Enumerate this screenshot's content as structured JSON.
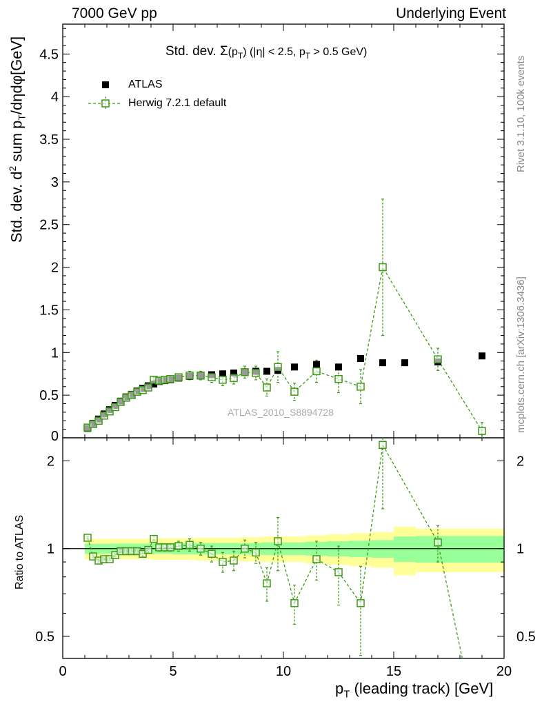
{
  "header": {
    "left": "7000 GeV pp",
    "right": "Underlying Event"
  },
  "side_labels": {
    "rivet": "Rivet 3.1.10,  100k events",
    "mcplots": "mcplots.cern.ch [arXiv:1306.3436]"
  },
  "watermark": "ATLAS_2010_S8894728",
  "colors": {
    "atlas": "#000000",
    "herwig": "#3a9a12",
    "band_inner": "#99ff99",
    "band_outer": "#ffff99"
  },
  "chart_data": [
    {
      "type": "scatter",
      "title": "Std. dev. Σ(pT) (|η| < 2.5, pT > 0.5 GeV)",
      "title_parts": {
        "main": "Std. dev. Σ",
        "paren": "(p",
        "sub": "T",
        "rest": ") (|η| < 2.5, p",
        "sub2": "T",
        "tail": " > 0.5 GeV)"
      },
      "ylabel": "Std. dev. d² sum pT/dηdφ[GeV]",
      "ylabel_parts": {
        "a": "Std. dev. d",
        "sup": "2",
        "b": " sum p",
        "sub": "T",
        "c": "/dηdφ[GeV]"
      },
      "xlim": [
        0,
        20
      ],
      "ylim": [
        0,
        4.85
      ],
      "yticks": [
        "0.5",
        "1",
        "1.5",
        "2",
        "2.5",
        "3",
        "3.5",
        "4",
        "4.5"
      ],
      "ytick_values": [
        0.5,
        1,
        1.5,
        2,
        2.5,
        3,
        3.5,
        4,
        4.5
      ],
      "ytick_bottom_label": "0",
      "legend_position": "top-left",
      "series": [
        {
          "name": "ATLAS",
          "marker": "filled-square",
          "x": [
            1.125,
            1.375,
            1.625,
            1.875,
            2.125,
            2.375,
            2.625,
            2.875,
            3.125,
            3.375,
            3.625,
            3.875,
            4.125,
            4.375,
            4.625,
            4.875,
            5.25,
            5.75,
            6.25,
            6.75,
            7.25,
            7.75,
            8.25,
            8.75,
            9.25,
            9.75,
            10.5,
            11.5,
            12.5,
            13.5,
            14.5,
            15.5,
            17.0,
            19.0
          ],
          "y": [
            0.11,
            0.17,
            0.22,
            0.28,
            0.33,
            0.38,
            0.43,
            0.48,
            0.51,
            0.55,
            0.58,
            0.61,
            0.63,
            0.66,
            0.67,
            0.68,
            0.7,
            0.72,
            0.73,
            0.74,
            0.75,
            0.76,
            0.77,
            0.78,
            0.78,
            0.79,
            0.83,
            0.86,
            0.83,
            0.93,
            0.88,
            0.88,
            0.89,
            0.96
          ]
        },
        {
          "name": "Herwig 7.2.1 default",
          "marker": "open-square",
          "x": [
            1.125,
            1.375,
            1.625,
            1.875,
            2.125,
            2.375,
            2.625,
            2.875,
            3.125,
            3.375,
            3.625,
            3.875,
            4.125,
            4.375,
            4.625,
            4.875,
            5.25,
            5.75,
            6.25,
            6.75,
            7.25,
            7.75,
            8.25,
            8.75,
            9.25,
            9.75,
            10.5,
            11.5,
            12.5,
            13.5,
            14.5,
            17.0,
            19.0
          ],
          "y": [
            0.12,
            0.16,
            0.2,
            0.26,
            0.31,
            0.36,
            0.42,
            0.47,
            0.5,
            0.54,
            0.56,
            0.59,
            0.68,
            0.67,
            0.68,
            0.69,
            0.71,
            0.73,
            0.73,
            0.71,
            0.68,
            0.7,
            0.77,
            0.76,
            0.59,
            0.83,
            0.54,
            0.78,
            0.69,
            0.6,
            2.0,
            0.92,
            0.08
          ],
          "yerr": [
            0.01,
            0.01,
            0.01,
            0.01,
            0.01,
            0.01,
            0.01,
            0.02,
            0.02,
            0.02,
            0.02,
            0.02,
            0.03,
            0.03,
            0.03,
            0.03,
            0.04,
            0.05,
            0.05,
            0.06,
            0.07,
            0.07,
            0.07,
            0.08,
            0.1,
            0.18,
            0.1,
            0.13,
            0.16,
            0.2,
            0.8,
            0.13,
            0.1
          ]
        }
      ]
    },
    {
      "type": "line",
      "ylabel": "Ratio to ATLAS",
      "xlabel": "pT (leading track) [GeV]",
      "xlabel_parts": {
        "a": "p",
        "sub": "T",
        "b": " (leading track) [GeV]"
      },
      "xlim": [
        0,
        20
      ],
      "xticks": [
        "0",
        "5",
        "10",
        "15",
        "20"
      ],
      "xtick_values": [
        0,
        5,
        10,
        15,
        20
      ],
      "yscale": "log",
      "ylim": [
        0.42,
        2.4
      ],
      "yticks": [
        "0.5",
        "1",
        "2"
      ],
      "ytick_values": [
        0.5,
        1,
        2
      ],
      "reference_line": 1,
      "uncertainty_band": {
        "x_edges": [
          1,
          2,
          3,
          4,
          5,
          6,
          7,
          8,
          9,
          10,
          11,
          12,
          13,
          14,
          15,
          16,
          18,
          20
        ],
        "inner_lo": [
          0.96,
          0.96,
          0.96,
          0.96,
          0.955,
          0.955,
          0.955,
          0.955,
          0.95,
          0.95,
          0.945,
          0.94,
          0.935,
          0.93,
          0.9,
          0.895,
          0.895
        ],
        "inner_hi": [
          1.04,
          1.04,
          1.04,
          1.04,
          1.045,
          1.045,
          1.045,
          1.045,
          1.05,
          1.05,
          1.055,
          1.06,
          1.065,
          1.07,
          1.1,
          1.105,
          1.105
        ],
        "outer_lo": [
          0.92,
          0.92,
          0.92,
          0.915,
          0.915,
          0.91,
          0.91,
          0.905,
          0.9,
          0.9,
          0.89,
          0.88,
          0.87,
          0.86,
          0.81,
          0.83,
          0.83
        ],
        "outer_hi": [
          1.08,
          1.08,
          1.08,
          1.085,
          1.085,
          1.09,
          1.09,
          1.095,
          1.1,
          1.1,
          1.11,
          1.12,
          1.13,
          1.14,
          1.19,
          1.17,
          1.17
        ]
      },
      "series": [
        {
          "name": "Herwig 7.2.1 default",
          "x": [
            1.125,
            1.375,
            1.625,
            1.875,
            2.125,
            2.375,
            2.625,
            2.875,
            3.125,
            3.375,
            3.625,
            3.875,
            4.125,
            4.375,
            4.625,
            4.875,
            5.25,
            5.75,
            6.25,
            6.75,
            7.25,
            7.75,
            8.25,
            8.75,
            9.25,
            9.75,
            10.5,
            11.5,
            12.5,
            13.5,
            14.5,
            17.0,
            19.0
          ],
          "y": [
            1.09,
            0.94,
            0.91,
            0.92,
            0.92,
            0.95,
            0.98,
            0.98,
            0.98,
            0.98,
            0.96,
            0.99,
            1.08,
            1.01,
            1.01,
            1.01,
            1.02,
            1.03,
            1.0,
            0.96,
            0.9,
            0.91,
            1.0,
            0.97,
            0.76,
            1.06,
            0.65,
            0.92,
            0.83,
            0.65,
            2.27,
            1.05,
            0.08
          ],
          "yerr": [
            0.01,
            0.01,
            0.01,
            0.01,
            0.01,
            0.01,
            0.01,
            0.02,
            0.02,
            0.02,
            0.02,
            0.02,
            0.03,
            0.03,
            0.03,
            0.03,
            0.04,
            0.05,
            0.05,
            0.06,
            0.07,
            0.07,
            0.07,
            0.08,
            0.1,
            0.22,
            0.1,
            0.14,
            0.19,
            0.22,
            0.9,
            0.15,
            0.1
          ]
        }
      ]
    }
  ]
}
